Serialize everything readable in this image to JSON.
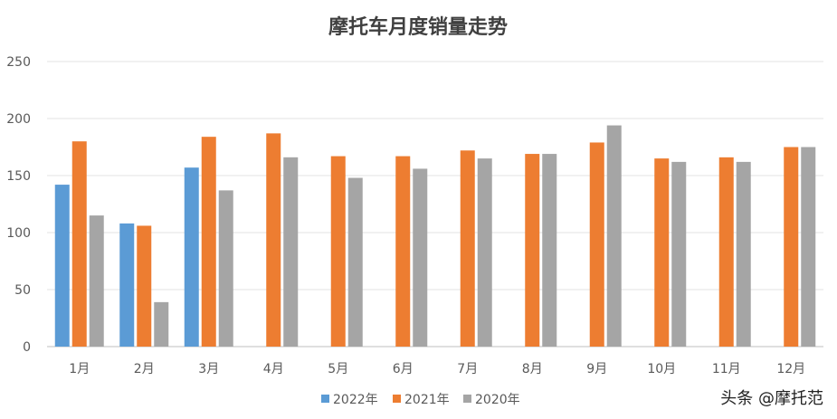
{
  "chart_data": {
    "type": "bar",
    "title": "摩托车月度销量走势",
    "xlabel": "",
    "ylabel": "",
    "ylim": [
      0,
      250
    ],
    "yticks": [
      0,
      50,
      100,
      150,
      200,
      250
    ],
    "grid": true,
    "legend": "bottom",
    "categories": [
      "1月",
      "2月",
      "3月",
      "4月",
      "5月",
      "6月",
      "7月",
      "8月",
      "9月",
      "10月",
      "11月",
      "12月"
    ],
    "series": [
      {
        "name": "2022年",
        "color": "#5B9BD5",
        "values": [
          142,
          108,
          157,
          null,
          null,
          null,
          null,
          null,
          null,
          null,
          null,
          null
        ]
      },
      {
        "name": "2021年",
        "color": "#ED7D31",
        "values": [
          180,
          106,
          184,
          187,
          167,
          167,
          172,
          169,
          179,
          165,
          166,
          175
        ]
      },
      {
        "name": "2020年",
        "color": "#A5A5A5",
        "values": [
          115,
          39,
          137,
          166,
          148,
          156,
          165,
          169,
          194,
          162,
          162,
          175
        ]
      }
    ]
  },
  "watermark": "头条 @摩托范"
}
